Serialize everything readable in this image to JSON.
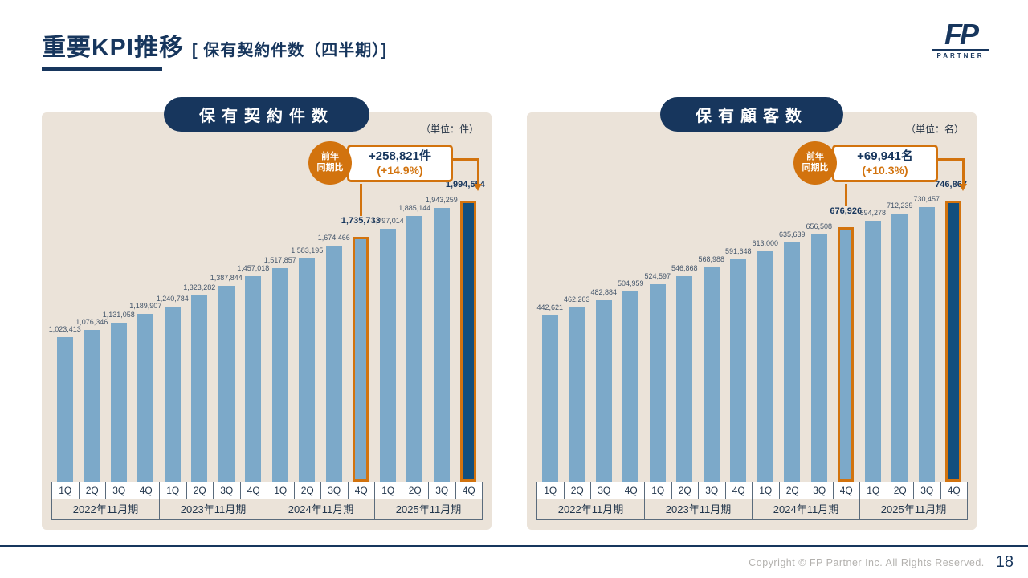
{
  "header": {
    "title": "重要KPI推移",
    "subtitle": "[ 保有契約件数（四半期）]",
    "logo_text": "FP",
    "logo_sub": "PARTNER"
  },
  "footer": {
    "copyright": "Copyright © FP Partner Inc. All Rights Reserved.",
    "page_number": "18"
  },
  "colors": {
    "navy": "#17365d",
    "bar_blue": "#7ca9c9",
    "bar_highlight_navy": "#124f7e",
    "accent_orange": "#d2730e",
    "panel_beige": "#ebe3d9"
  },
  "chart_data": [
    {
      "type": "bar",
      "title": "保有契約件数",
      "unit": "（単位：件）",
      "categories": [
        "1Q",
        "2Q",
        "3Q",
        "4Q",
        "1Q",
        "2Q",
        "3Q",
        "4Q",
        "1Q",
        "2Q",
        "3Q",
        "4Q",
        "1Q",
        "2Q",
        "3Q",
        "4Q"
      ],
      "group_labels": [
        "2022年11月期",
        "2023年11月期",
        "2024年11月期",
        "2025年11月期"
      ],
      "values": [
        1023413,
        1076346,
        1131058,
        1189907,
        1240784,
        1323282,
        1387844,
        1457018,
        1517857,
        1583195,
        1674466,
        1735733,
        1797014,
        1885144,
        1943259,
        1994554
      ],
      "ylim": [
        0,
        1994554
      ],
      "highlight_outline_index": 11,
      "highlight_solid_index": 15,
      "legend_position": "none",
      "grid": false,
      "annotation": {
        "badge_line1": "前年",
        "badge_line2": "同期比",
        "value": "+258,821件",
        "percent": "(+14.9%)"
      }
    },
    {
      "type": "bar",
      "title": "保有顧客数",
      "unit": "（単位：名）",
      "categories": [
        "1Q",
        "2Q",
        "3Q",
        "4Q",
        "1Q",
        "2Q",
        "3Q",
        "4Q",
        "1Q",
        "2Q",
        "3Q",
        "4Q",
        "1Q",
        "2Q",
        "3Q",
        "4Q"
      ],
      "group_labels": [
        "2022年11月期",
        "2023年11月期",
        "2024年11月期",
        "2025年11月期"
      ],
      "values": [
        442621,
        462203,
        482884,
        504959,
        524597,
        546868,
        568988,
        591648,
        613000,
        635639,
        656508,
        676926,
        694278,
        712239,
        730457,
        746867
      ],
      "ylim": [
        0,
        746867
      ],
      "highlight_outline_index": 11,
      "highlight_solid_index": 15,
      "legend_position": "none",
      "grid": false,
      "annotation": {
        "badge_line1": "前年",
        "badge_line2": "同期比",
        "value": "+69,941名",
        "percent": "(+10.3%)"
      }
    }
  ]
}
